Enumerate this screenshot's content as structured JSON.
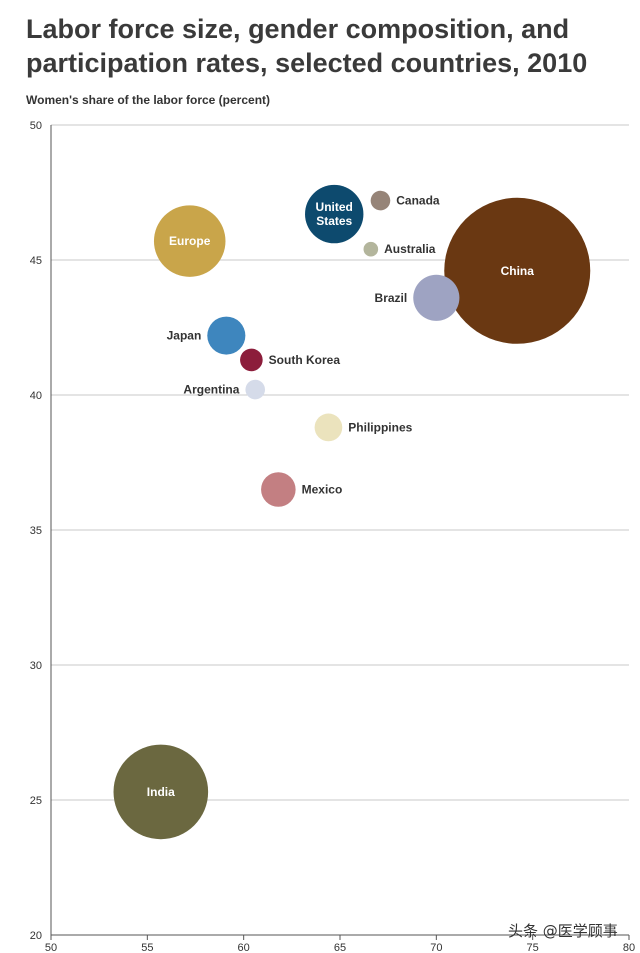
{
  "chart_data": {
    "type": "scatter",
    "title": "Labor force size, gender composition, and participation rates, selected countries, 2010",
    "ylabel": "Women's share of the labor force (percent)",
    "xlabel": "",
    "xlim": [
      50,
      80
    ],
    "ylim": [
      20,
      50
    ],
    "x_ticks": [
      "50",
      "55",
      "60",
      "65",
      "70",
      "75",
      "80"
    ],
    "y_ticks": [
      "20",
      "25",
      "30",
      "35",
      "40",
      "45",
      "50"
    ],
    "grid": "horizontal",
    "points": [
      {
        "label": "China",
        "x": 74.2,
        "y": 44.6,
        "size": 100,
        "color": "#6a3812",
        "label_pos": "inside"
      },
      {
        "label": "India",
        "x": 55.7,
        "y": 25.3,
        "size": 42,
        "color": "#6b6840",
        "label_pos": "inside"
      },
      {
        "label": "Europe",
        "x": 57.2,
        "y": 45.7,
        "size": 24,
        "color": "#c9a54a",
        "label_pos": "inside"
      },
      {
        "label": "United\nStates",
        "x": 64.7,
        "y": 46.7,
        "size": 16,
        "color": "#0d4a6e",
        "label_pos": "inside"
      },
      {
        "label": "Brazil",
        "x": 70.0,
        "y": 43.6,
        "size": 10,
        "color": "#9ea3c2",
        "label_pos": "left"
      },
      {
        "label": "Japan",
        "x": 59.1,
        "y": 42.2,
        "size": 6.8,
        "color": "#3e86be",
        "label_pos": "left"
      },
      {
        "label": "Mexico",
        "x": 61.8,
        "y": 36.5,
        "size": 5.6,
        "color": "#c37f82",
        "label_pos": "right"
      },
      {
        "label": "Philippines",
        "x": 64.4,
        "y": 38.8,
        "size": 3.6,
        "color": "#ebe3bd",
        "label_pos": "right"
      },
      {
        "label": "South Korea",
        "x": 60.4,
        "y": 41.3,
        "size": 2.4,
        "color": "#8c1d3b",
        "label_pos": "right"
      },
      {
        "label": "Argentina",
        "x": 60.6,
        "y": 40.2,
        "size": 1.8,
        "color": "#d5dbe9",
        "label_pos": "left"
      },
      {
        "label": "Canada",
        "x": 67.1,
        "y": 47.2,
        "size": 1.8,
        "color": "#968478",
        "label_pos": "right"
      },
      {
        "label": "Australia",
        "x": 66.6,
        "y": 45.4,
        "size": 1.0,
        "color": "#b3b59c",
        "label_pos": "right"
      }
    ]
  },
  "watermark": "头条 @医学顾事"
}
